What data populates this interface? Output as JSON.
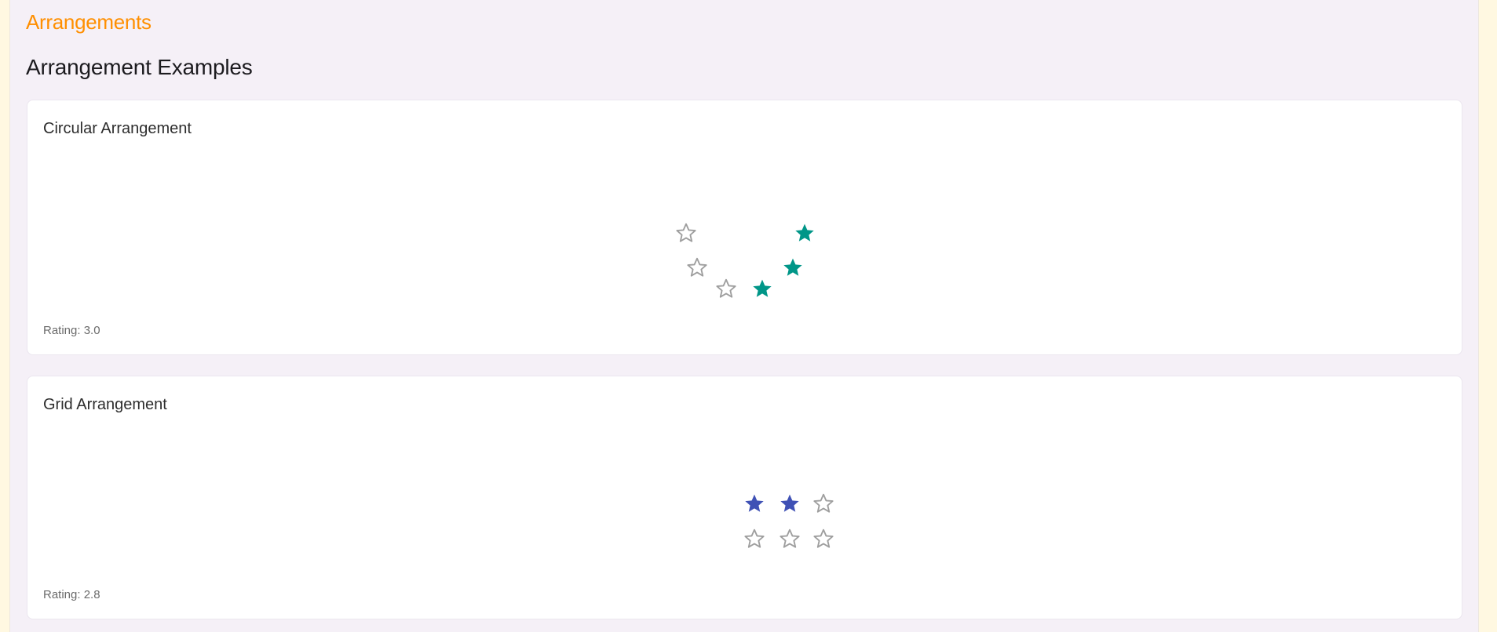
{
  "section": {
    "title": "Arrangements"
  },
  "page": {
    "heading": "Arrangement Examples"
  },
  "circular": {
    "title": "Circular Arrangement",
    "rating_label": "Rating: 3.0",
    "rating": 3.0,
    "star_count": 6,
    "filled_color": "#009688",
    "empty_color": "#9e9e9e",
    "icon_filled": "star-filled-icon",
    "icon_empty": "star-outline-icon"
  },
  "grid": {
    "title": "Grid Arrangement",
    "rating_label": "Rating: 2.8",
    "rating": 2.8,
    "star_count": 6,
    "filled_color": "#3f51b5",
    "empty_color": "#9e9e9e",
    "icon_filled": "star-filled-icon",
    "icon_empty": "star-outline-icon"
  }
}
